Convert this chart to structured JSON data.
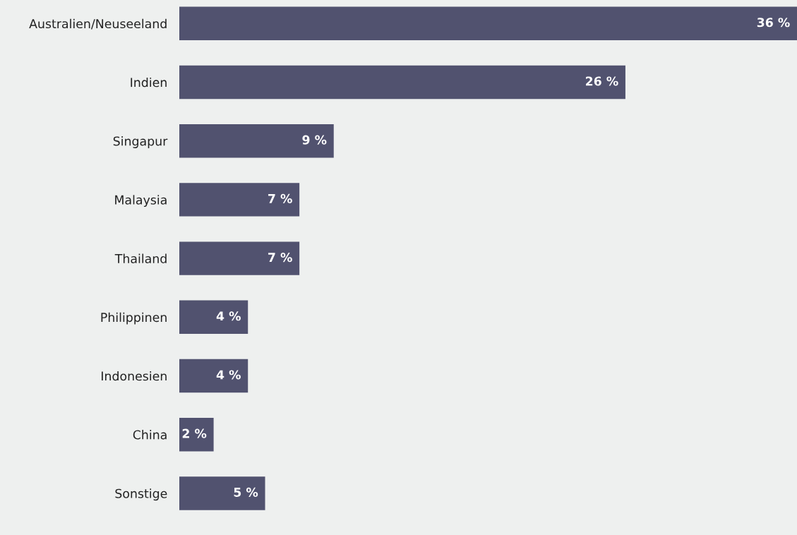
{
  "chart_data": {
    "type": "bar",
    "orientation": "horizontal",
    "categories": [
      "Australien/Neuseeland",
      "Indien",
      "Singapur",
      "Malaysia",
      "Thailand",
      "Philippinen",
      "Indonesien",
      "China",
      "Sonstige"
    ],
    "values": [
      36,
      26,
      9,
      7,
      7,
      4,
      4,
      2,
      5
    ],
    "value_labels": [
      "36 %",
      "26 %",
      "9 %",
      "7 %",
      "7 %",
      "4 %",
      "4 %",
      "2 %",
      "5 %"
    ],
    "color": "#51526f",
    "grid": false,
    "legend": false
  }
}
